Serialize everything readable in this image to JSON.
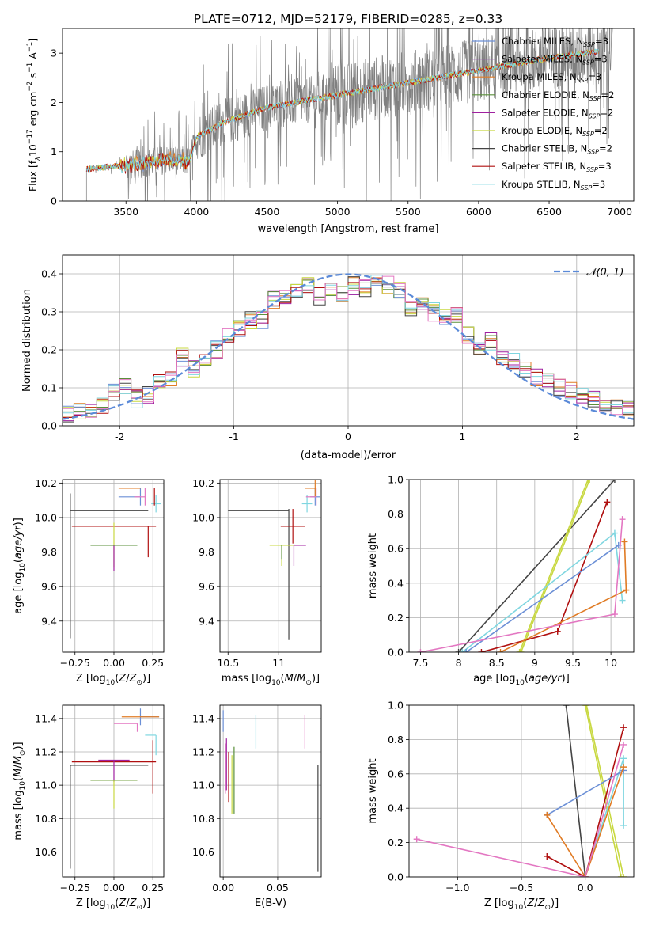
{
  "figure": {
    "title": "PLATE=0712, MJD=52179, FIBERID=0285, z=0.33"
  },
  "series_colors": {
    "Chabrier MILES": "#6b8fd6",
    "Salpeter MILES": "#9b59b6",
    "Kroupa MILES": "#e07b24",
    "Chabrier ELODIE": "#5a8f3a",
    "Salpeter ELODIE": "#a020a0",
    "Kroupa ELODIE": "#c8d840",
    "Chabrier STELIB": "#444444",
    "Salpeter STELIB": "#b01010",
    "Kroupa STELIB": "#7fd6e0",
    "Salpeter pink": "#e377c2"
  },
  "chart_data": [
    {
      "id": "spectrum",
      "type": "line",
      "title": "PLATE=0712, MJD=52179, FIBERID=0285, z=0.33",
      "xlabel": "wavelength [Angstrom, rest frame]",
      "ylabel": "Flux [f_λ 10^-17 erg cm^-2 s^-1 A^-1]",
      "xlim": [
        3050,
        7100
      ],
      "ylim": [
        0,
        3.5
      ],
      "xticks": [
        3500,
        4000,
        4500,
        5000,
        5500,
        6000,
        6500,
        7000
      ],
      "yticks": [
        0,
        1,
        2,
        3
      ],
      "legend": [
        "Chabrier MILES, N_SSP=3",
        "Salpeter MILES, N_SSP=3",
        "Kroupa MILES, N_SSP=3",
        "Chabrier ELODIE, N_SSP=2",
        "Salpeter ELODIE, N_SSP=2",
        "Kroupa ELODIE, N_SSP=2",
        "Chabrier STELIB, N_SSP=2",
        "Salpeter STELIB, N_SSP=3",
        "Kroupa STELIB, N_SSP=3"
      ],
      "legend_placement": "top-right",
      "model_trend": {
        "x": [
          3220,
          3400,
          3600,
          3800,
          3950,
          4000,
          4200,
          4500,
          5000,
          5500,
          6000,
          6500,
          6900
        ],
        "y": [
          0.65,
          0.7,
          0.75,
          0.85,
          0.8,
          1.3,
          1.6,
          1.9,
          2.15,
          2.4,
          2.65,
          2.9,
          3.05
        ]
      },
      "data_start": 3220
    },
    {
      "id": "residuals",
      "type": "line",
      "xlabel": "(data-model)/error",
      "ylabel": "Normed distribution",
      "xlim": [
        -2.5,
        2.5
      ],
      "ylim": [
        0,
        0.45
      ],
      "xticks": [
        -2,
        -1,
        0,
        1,
        2
      ],
      "yticks": [
        0.0,
        0.1,
        0.2,
        0.3,
        0.4
      ],
      "grid": true,
      "legend": [
        "𝒩(0, 1)"
      ],
      "legend_placement": "top-right",
      "histogram": {
        "bin_centers": [
          -2.45,
          -2.35,
          -2.25,
          -2.15,
          -2.05,
          -1.95,
          -1.85,
          -1.75,
          -1.65,
          -1.55,
          -1.45,
          -1.35,
          -1.25,
          -1.15,
          -1.05,
          -0.95,
          -0.85,
          -0.75,
          -0.65,
          -0.55,
          -0.45,
          -0.35,
          -0.25,
          -0.15,
          -0.05,
          0.05,
          0.15,
          0.25,
          0.35,
          0.45,
          0.55,
          0.65,
          0.75,
          0.85,
          0.95,
          1.05,
          1.15,
          1.25,
          1.35,
          1.45,
          1.55,
          1.65,
          1.75,
          1.85,
          1.95,
          2.05,
          2.15,
          2.25,
          2.35,
          2.45
        ],
        "values": [
          0.03,
          0.035,
          0.04,
          0.05,
          0.09,
          0.1,
          0.07,
          0.08,
          0.11,
          0.13,
          0.18,
          0.15,
          0.18,
          0.2,
          0.24,
          0.26,
          0.28,
          0.28,
          0.33,
          0.34,
          0.35,
          0.37,
          0.34,
          0.36,
          0.35,
          0.37,
          0.36,
          0.38,
          0.37,
          0.36,
          0.31,
          0.33,
          0.3,
          0.29,
          0.29,
          0.24,
          0.21,
          0.22,
          0.18,
          0.17,
          0.15,
          0.13,
          0.12,
          0.1,
          0.09,
          0.08,
          0.07,
          0.06,
          0.05,
          0.04
        ]
      }
    },
    {
      "id": "age-vs-Z",
      "type": "scatter",
      "xlabel": "Z [log10(Z/Z⊙)]",
      "ylabel": "age [log10(age/yr)]",
      "xlim": [
        -0.33,
        0.32
      ],
      "ylim": [
        9.22,
        10.22
      ],
      "xticks": [
        -0.25,
        0.0,
        0.25
      ],
      "xtick_labels": [
        "−0.25",
        "0.00",
        "0.25"
      ],
      "yticks": [
        9.4,
        9.6,
        9.8,
        10.0,
        10.2
      ],
      "grid": true,
      "points": [
        {
          "series": "Chabrier MILES",
          "x": 0.17,
          "y": 10.12,
          "xerr": [
            0.14,
            0.0
          ],
          "yerr": [
            0.05,
            0.05
          ]
        },
        {
          "series": "Kroupa MILES",
          "x": 0.17,
          "y": 10.17,
          "xerr": [
            0.14,
            0.0
          ],
          "yerr": [
            0.0,
            0.0
          ]
        },
        {
          "series": "Kroupa STELIB",
          "x": 0.27,
          "y": 10.08,
          "xerr": [
            0.03,
            0.03
          ],
          "yerr": [
            0.05,
            0.05
          ]
        },
        {
          "series": "Salpeter pink",
          "x": 0.2,
          "y": 10.12,
          "xerr": [
            0.07,
            0.0
          ],
          "yerr": [
            0.05,
            0.05
          ]
        },
        {
          "series": "Salpeter STELIB",
          "x": 0.26,
          "y": 10.12,
          "xerr": [
            0.0,
            0.0
          ],
          "yerr": [
            0.05,
            0.05
          ]
        },
        {
          "series": "Chabrier STELIB",
          "x": 0.22,
          "y": 10.04,
          "xerr": [
            0.5,
            0.0
          ],
          "yerr": [
            0.0,
            0.0
          ]
        },
        {
          "series": "Chabrier STELIB",
          "x": -0.28,
          "y": 9.72,
          "xerr": [
            0.0,
            0.0
          ],
          "yerr": [
            0.42,
            0.42
          ]
        },
        {
          "series": "Salpeter STELIB",
          "x": 0.0,
          "y": 9.95,
          "xerr": [
            0.27,
            0.27
          ],
          "yerr": [
            0.0,
            0.0
          ]
        },
        {
          "series": "Salpeter STELIB",
          "x": 0.22,
          "y": 9.86,
          "xerr": [
            0.0,
            0.0
          ],
          "yerr": [
            0.09,
            0.09
          ]
        },
        {
          "series": "Kroupa ELODIE",
          "x": 0.0,
          "y": 9.84,
          "xerr": [
            0.15,
            0.15
          ],
          "yerr": [
            0.13,
            0.13
          ]
        },
        {
          "series": "Salpeter ELODIE",
          "x": 0.0,
          "y": 9.84,
          "xerr": [
            0.0,
            0.0
          ],
          "yerr": [
            0.15,
            0.0
          ]
        },
        {
          "series": "Chabrier ELODIE",
          "x": 0.0,
          "y": 9.84,
          "xerr": [
            0.15,
            0.15
          ],
          "yerr": [
            0.0,
            0.0
          ]
        }
      ]
    },
    {
      "id": "age-vs-mass",
      "type": "scatter",
      "xlabel": "mass [log10(M/M⊙)]",
      "ylabel": "",
      "xlim": [
        10.42,
        11.42
      ],
      "ylim": [
        9.22,
        10.22
      ],
      "xticks": [
        10.5,
        11.0
      ],
      "yticks": [
        9.4,
        9.6,
        9.8,
        10.0,
        10.2
      ],
      "grid": true,
      "points": [
        {
          "series": "Chabrier MILES",
          "x": 11.36,
          "y": 10.12,
          "xerr": [
            0.05,
            0.05
          ],
          "yerr": [
            0.05,
            0.05
          ]
        },
        {
          "series": "Kroupa MILES",
          "x": 11.36,
          "y": 10.17,
          "xerr": [
            0.1,
            0.0
          ],
          "yerr": [
            0.05,
            0.05
          ]
        },
        {
          "series": "Kroupa STELIB",
          "x": 11.28,
          "y": 10.08,
          "xerr": [
            0.05,
            0.05
          ],
          "yerr": [
            0.05,
            0.05
          ]
        },
        {
          "series": "Salpeter pink",
          "x": 11.37,
          "y": 10.12,
          "xerr": [
            0.1,
            0.0
          ],
          "yerr": [
            0.05,
            0.05
          ]
        },
        {
          "series": "Chabrier STELIB",
          "x": 11.1,
          "y": 9.7,
          "xerr": [
            0.0,
            0.0
          ],
          "yerr": [
            0.41,
            0.35
          ]
        },
        {
          "series": "Chabrier STELIB",
          "x": 11.1,
          "y": 10.04,
          "xerr": [
            0.6,
            0.0
          ],
          "yerr": [
            0.0,
            0.0
          ]
        },
        {
          "series": "Salpeter STELIB",
          "x": 11.14,
          "y": 9.95,
          "xerr": [
            0.12,
            0.12
          ],
          "yerr": [
            0.1,
            0.1
          ]
        },
        {
          "series": "Salpeter ELODIE",
          "x": 11.15,
          "y": 9.84,
          "xerr": [
            0.12,
            0.12
          ],
          "yerr": [
            0.12,
            0.0
          ]
        },
        {
          "series": "Kroupa ELODIE",
          "x": 11.03,
          "y": 9.84,
          "xerr": [
            0.12,
            0.12
          ],
          "yerr": [
            0.12,
            0.0
          ]
        },
        {
          "series": "Chabrier ELODIE",
          "x": 11.03,
          "y": 9.84,
          "xerr": [
            0.0,
            0.0
          ],
          "yerr": [
            0.08,
            0.0
          ]
        }
      ]
    },
    {
      "id": "weight-vs-age",
      "type": "line",
      "xlabel": "age [log10(age/yr)]",
      "ylabel": "mass weight",
      "xlim": [
        7.35,
        10.3
      ],
      "ylim": [
        0,
        1
      ],
      "xticks": [
        7.5,
        8.0,
        8.5,
        9.0,
        9.5,
        10.0
      ],
      "yticks": [
        0.0,
        0.2,
        0.4,
        0.6,
        0.8,
        1.0
      ],
      "grid": true,
      "series": [
        {
          "color_key": "Chabrier STELIB",
          "x": [
            8.0,
            10.05
          ],
          "y": [
            0.0,
            1.0
          ]
        },
        {
          "color_key": "Kroupa ELODIE",
          "x": [
            8.8,
            9.7
          ],
          "y": [
            0.0,
            1.0
          ]
        },
        {
          "color_key": "Kroupa ELODIE",
          "x": [
            8.82,
            9.72
          ],
          "y": [
            0.0,
            1.0
          ]
        },
        {
          "color_key": "Salpeter STELIB",
          "x": [
            8.3,
            9.3,
            9.95
          ],
          "y": [
            0.0,
            0.12,
            0.87
          ]
        },
        {
          "color_key": "Kroupa STELIB",
          "x": [
            8.05,
            10.05,
            10.15
          ],
          "y": [
            0.0,
            0.69,
            0.3
          ]
        },
        {
          "color_key": "Chabrier MILES",
          "x": [
            8.1,
            10.1
          ],
          "y": [
            0.0,
            0.62
          ]
        },
        {
          "color_key": "Kroupa MILES",
          "x": [
            8.55,
            10.2,
            10.18,
            10.2
          ],
          "y": [
            0.0,
            0.36,
            0.64,
            0.36
          ]
        },
        {
          "color_key": "Salpeter pink",
          "x": [
            7.5,
            10.05,
            10.15
          ],
          "y": [
            0.0,
            0.22,
            0.77
          ]
        }
      ]
    },
    {
      "id": "mass-vs-Z",
      "type": "scatter",
      "xlabel": "Z [log10(Z/Z⊙)]",
      "ylabel": "mass [log10(M/M⊙)]",
      "xlim": [
        -0.33,
        0.32
      ],
      "ylim": [
        10.45,
        11.48
      ],
      "xticks": [
        -0.25,
        0.0,
        0.25
      ],
      "xtick_labels": [
        "−0.25",
        "0.00",
        "0.25"
      ],
      "yticks": [
        10.6,
        10.8,
        11.0,
        11.2,
        11.4
      ],
      "grid": true,
      "points": [
        {
          "series": "Chabrier MILES",
          "x": 0.17,
          "y": 11.41,
          "xerr": [
            0.0,
            0.12
          ],
          "yerr": [
            0.05,
            0.05
          ]
        },
        {
          "series": "Kroupa MILES",
          "x": 0.17,
          "y": 11.41,
          "xerr": [
            0.12,
            0.12
          ],
          "yerr": [
            0.0,
            0.0
          ]
        },
        {
          "series": "Salpeter pink",
          "x": 0.15,
          "y": 11.37,
          "xerr": [
            0.15,
            0.0
          ],
          "yerr": [
            0.05,
            0.0
          ]
        },
        {
          "series": "Kroupa STELIB",
          "x": 0.27,
          "y": 11.3,
          "xerr": [
            0.07,
            0.0
          ],
          "yerr": [
            0.12,
            0.0
          ]
        },
        {
          "series": "Salpeter STELIB",
          "x": 0.25,
          "y": 11.12,
          "xerr": [
            0.0,
            0.0
          ],
          "yerr": [
            0.17,
            0.15
          ]
        },
        {
          "series": "Salpeter STELIB",
          "x": 0.0,
          "y": 11.14,
          "xerr": [
            0.27,
            0.27
          ],
          "yerr": [
            0.0,
            0.0
          ]
        },
        {
          "series": "Chabrier STELIB",
          "x": -0.28,
          "y": 11.12,
          "xerr": [
            0.0,
            0.5
          ],
          "yerr": [
            0.62,
            0.0
          ]
        },
        {
          "series": "Salpeter ELODIE",
          "x": 0.0,
          "y": 11.15,
          "xerr": [
            0.1,
            0.1
          ],
          "yerr": [
            0.13,
            0.0
          ]
        },
        {
          "series": "Kroupa ELODIE",
          "x": 0.0,
          "y": 11.03,
          "xerr": [
            0.15,
            0.15
          ],
          "yerr": [
            0.17,
            0.0
          ]
        },
        {
          "series": "Chabrier ELODIE",
          "x": 0.0,
          "y": 11.03,
          "xerr": [
            0.15,
            0.15
          ],
          "yerr": [
            0.0,
            0.0
          ]
        }
      ]
    },
    {
      "id": "mass-vs-EBV",
      "type": "scatter",
      "xlabel": "E(B-V)",
      "ylabel": "",
      "xlim": [
        -0.003,
        0.09
      ],
      "ylim": [
        10.45,
        11.48
      ],
      "xticks": [
        0.0,
        0.05
      ],
      "xtick_labels": [
        "0.00",
        "0.05"
      ],
      "yticks": [
        10.6,
        10.8,
        11.0,
        11.2,
        11.4
      ],
      "grid": true,
      "points": [
        {
          "series": "Chabrier MILES",
          "x": 0.0,
          "y": 11.4,
          "yerr": [
            0.08,
            0.05
          ]
        },
        {
          "series": "Salpeter pink",
          "x": 0.002,
          "y": 11.2,
          "yerr": [
            0.25,
            0.05
          ]
        },
        {
          "series": "Salpeter ELODIE",
          "x": 0.003,
          "y": 11.15,
          "yerr": [
            0.18,
            0.13
          ]
        },
        {
          "series": "Salpeter STELIB",
          "x": 0.005,
          "y": 11.1,
          "yerr": [
            0.2,
            0.1
          ]
        },
        {
          "series": "Kroupa ELODIE",
          "x": 0.008,
          "y": 11.03,
          "yerr": [
            0.2,
            0.15
          ]
        },
        {
          "series": "Chabrier ELODIE",
          "x": 0.01,
          "y": 11.03,
          "yerr": [
            0.2,
            0.2
          ]
        },
        {
          "series": "Kroupa STELIB",
          "x": 0.03,
          "y": 11.32,
          "yerr": [
            0.1,
            0.1
          ]
        },
        {
          "series": "Salpeter pink",
          "x": 0.075,
          "y": 11.32,
          "yerr": [
            0.1,
            0.1
          ]
        },
        {
          "series": "Chabrier STELIB",
          "x": 0.087,
          "y": 10.8,
          "yerr": [
            0.32,
            0.32
          ]
        }
      ]
    },
    {
      "id": "weight-vs-Z",
      "type": "line",
      "xlabel": "Z [log10(Z/Z⊙)]",
      "ylabel": "mass weight",
      "xlim": [
        -1.38,
        0.38
      ],
      "ylim": [
        0,
        1
      ],
      "xticks": [
        -1.0,
        -0.5,
        0.0
      ],
      "xtick_labels": [
        "−1.0",
        "−0.5",
        "0.0"
      ],
      "yticks": [
        0.0,
        0.2,
        0.4,
        0.6,
        0.8,
        1.0
      ],
      "grid": true,
      "series": [
        {
          "color_key": "Chabrier STELIB",
          "x": [
            -0.15,
            0.0
          ],
          "y": [
            1.0,
            0.0
          ]
        },
        {
          "color_key": "Kroupa ELODIE",
          "x": [
            0.0,
            0.28
          ],
          "y": [
            1.0,
            0.0
          ]
        },
        {
          "color_key": "Kroupa ELODIE",
          "x": [
            0.01,
            0.3
          ],
          "y": [
            1.0,
            0.0
          ]
        },
        {
          "color_key": "Salpeter STELIB",
          "x": [
            -0.3,
            0.0,
            0.3
          ],
          "y": [
            0.12,
            0.0,
            0.87
          ]
        },
        {
          "color_key": "Kroupa STELIB",
          "x": [
            0.0,
            0.3,
            0.3
          ],
          "y": [
            0.0,
            0.69,
            0.3
          ]
        },
        {
          "color_key": "Chabrier MILES",
          "x": [
            -0.3,
            0.3
          ],
          "y": [
            0.36,
            0.62
          ]
        },
        {
          "color_key": "Kroupa MILES",
          "x": [
            -0.3,
            0.0,
            0.3
          ],
          "y": [
            0.36,
            0.0,
            0.64
          ]
        },
        {
          "color_key": "Salpeter pink",
          "x": [
            -1.32,
            0.0,
            0.3
          ],
          "y": [
            0.22,
            0.0,
            0.77
          ]
        }
      ]
    }
  ]
}
